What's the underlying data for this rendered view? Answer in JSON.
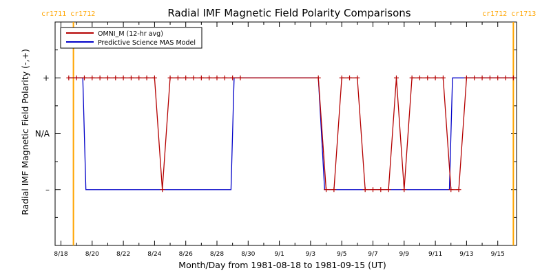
{
  "chart_data": {
    "type": "line",
    "title": "Radial IMF Magnetic Field Polarity Comparisons",
    "xlabel": "Month/Day from 1981-08-18 to 1981-09-15 (UT)",
    "ylabel": "Radial IMF Magnetic Field Polarity (-,+)",
    "xlim": [
      0,
      29
    ],
    "ylim": [
      -2,
      2
    ],
    "x_ticks": [
      {
        "day": 0,
        "label": "8/18"
      },
      {
        "day": 2,
        "label": "8/20"
      },
      {
        "day": 4,
        "label": "8/22"
      },
      {
        "day": 6,
        "label": "8/24"
      },
      {
        "day": 8,
        "label": "8/26"
      },
      {
        "day": 10,
        "label": "8/28"
      },
      {
        "day": 12,
        "label": "8/30"
      },
      {
        "day": 14,
        "label": "9/1"
      },
      {
        "day": 16,
        "label": "9/3"
      },
      {
        "day": 18,
        "label": "9/5"
      },
      {
        "day": 20,
        "label": "9/7"
      },
      {
        "day": 22,
        "label": "9/9"
      },
      {
        "day": 24,
        "label": "9/11"
      },
      {
        "day": 26,
        "label": "9/13"
      },
      {
        "day": 28,
        "label": "9/15"
      }
    ],
    "y_ticks": [
      {
        "value": 1,
        "label": "+"
      },
      {
        "value": 0,
        "label": "N/A"
      },
      {
        "value": -1,
        "label": "–"
      }
    ],
    "carrington_markers": [
      {
        "day": 0.8,
        "label": "cr1711 cr1712"
      },
      {
        "day": 29.0,
        "label": "cr1712 cr1713"
      }
    ],
    "series": [
      {
        "name": "OMNI_M (12-hr avg)",
        "color": "#b40000",
        "marker": "+",
        "x": [
          0.5,
          1.0,
          1.5,
          2.0,
          2.5,
          3.0,
          3.5,
          4.0,
          4.5,
          5.0,
          5.5,
          6.0,
          6.5,
          7.0,
          7.5,
          8.0,
          8.5,
          9.0,
          9.5,
          10.0,
          10.5,
          11.0,
          11.5,
          16.5,
          17.0,
          17.5,
          18.0,
          18.5,
          19.0,
          19.5,
          20.0,
          20.5,
          21.0,
          21.5,
          22.0,
          22.5,
          23.0,
          23.5,
          24.0,
          24.5,
          25.0,
          25.5,
          26.0,
          26.5,
          27.0,
          27.5,
          28.0,
          28.5,
          29.0
        ],
        "y": [
          1,
          1,
          1,
          1,
          1,
          1,
          1,
          1,
          1,
          1,
          1,
          1,
          -1,
          1,
          1,
          1,
          1,
          1,
          1,
          1,
          1,
          1,
          1,
          1,
          -1,
          -1,
          1,
          1,
          1,
          -1,
          -1,
          -1,
          -1,
          1,
          -1,
          1,
          1,
          1,
          1,
          1,
          -1,
          -1,
          1,
          1,
          1,
          1,
          1,
          1,
          1
        ]
      },
      {
        "name": "Predictive Science MAS Model",
        "color": "#0000c8",
        "marker": "none",
        "x": [
          0.5,
          1.4,
          1.6,
          10.9,
          11.1,
          16.5,
          16.7,
          16.9,
          24.9,
          25.1,
          29.0
        ],
        "y": [
          1,
          1,
          -1,
          -1,
          1,
          1,
          0,
          -1,
          -1,
          1,
          1
        ]
      }
    ],
    "legend_position": "top-left",
    "grid": false,
    "colors": {
      "axis": "#000000",
      "carrington_line": "#ffa500",
      "carrington_text": "#ffa500"
    }
  }
}
